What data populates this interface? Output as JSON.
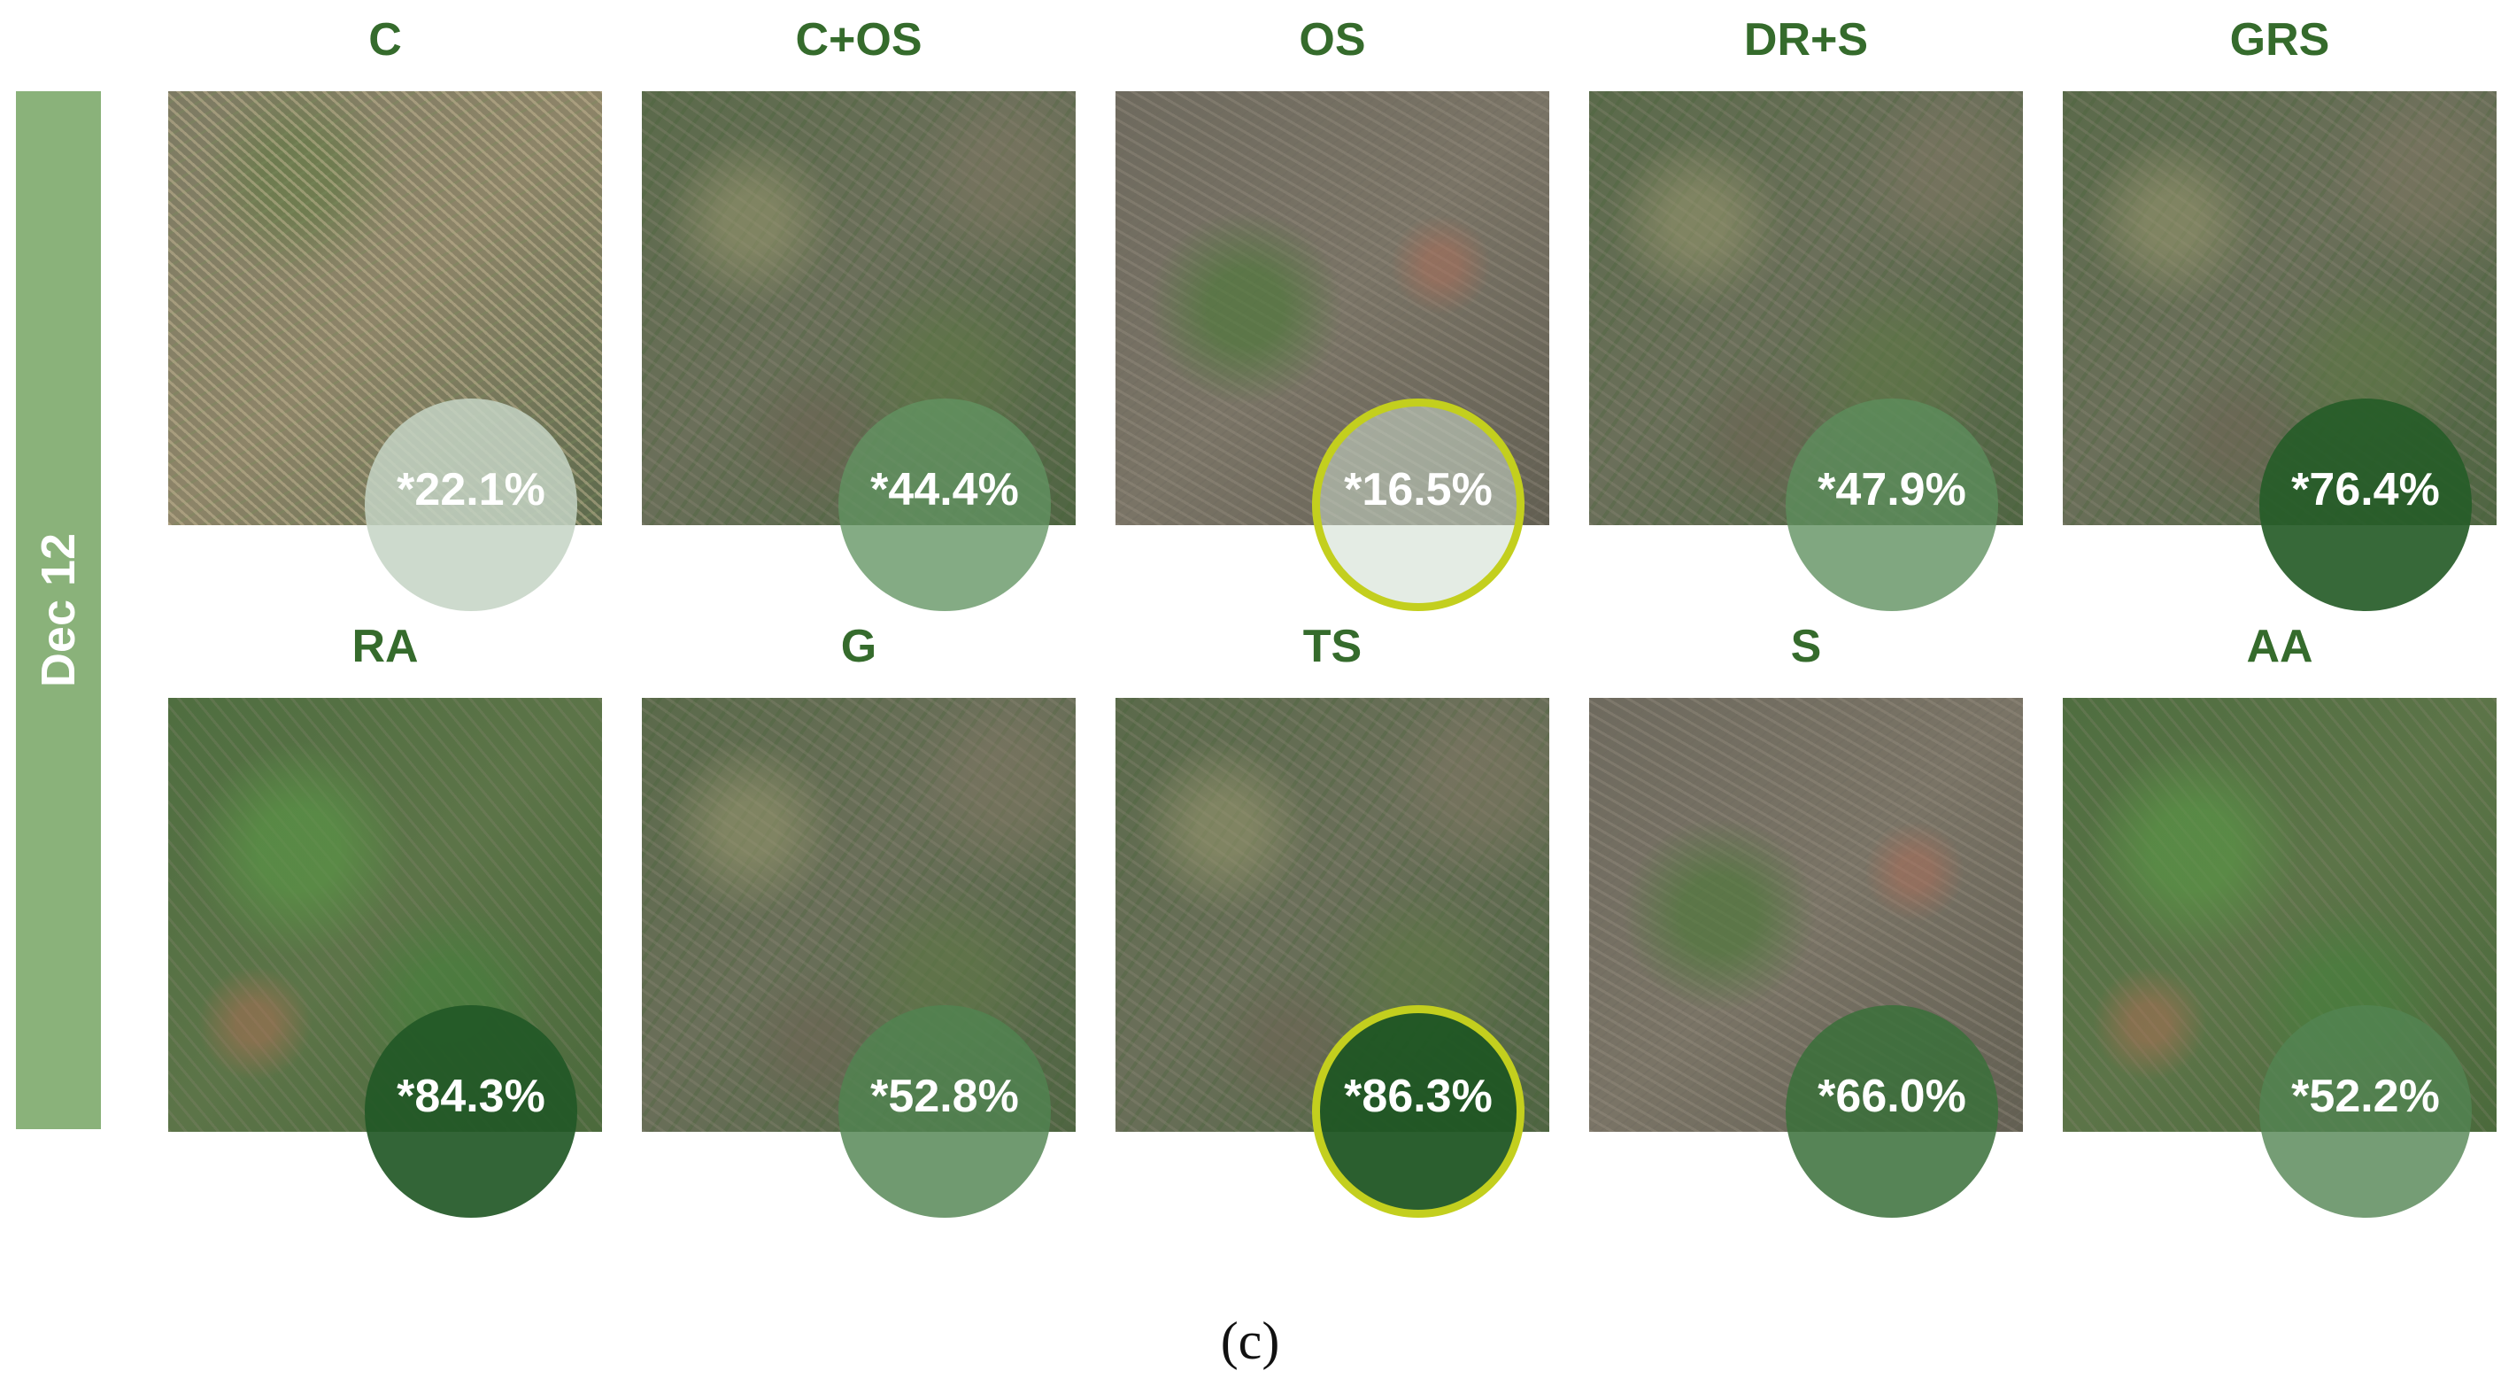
{
  "date_label": "Dec 12",
  "caption": "(c)",
  "colors": {
    "date_band": "#8ab27a",
    "label_text": "#356b2c",
    "highlight_ring": "#c3cf1e"
  },
  "rows": [
    {
      "plots": [
        {
          "label": "C",
          "value": "*22.1%",
          "circle_color": "rgba(196,212,196,0.85)",
          "highlight": false
        },
        {
          "label": "C+OS",
          "value": "*44.4%",
          "circle_color": "rgba(98,148,98,0.78)",
          "highlight": false
        },
        {
          "label": "OS",
          "value": "*16.5%",
          "circle_color": "rgba(206,220,206,0.55)",
          "highlight": true
        },
        {
          "label": "DR+S",
          "value": "*47.9%",
          "circle_color": "rgba(92,142,92,0.78)",
          "highlight": false
        },
        {
          "label": "GRS",
          "value": "*76.4%",
          "circle_color": "rgba(38,92,40,0.92)",
          "highlight": false
        }
      ]
    },
    {
      "plots": [
        {
          "label": "RA",
          "value": "*84.3%",
          "circle_color": "rgba(34,88,38,0.92)",
          "highlight": false
        },
        {
          "label": "G",
          "value": "*52.8%",
          "circle_color": "rgba(80,132,80,0.82)",
          "highlight": false
        },
        {
          "label": "TS",
          "value": "*86.3%",
          "circle_color": "rgba(32,86,36,0.95)",
          "highlight": true
        },
        {
          "label": "S",
          "value": "*66.0%",
          "circle_color": "rgba(58,112,58,0.86)",
          "highlight": false
        },
        {
          "label": "AA",
          "value": "*52.2%",
          "circle_color": "rgba(82,132,82,0.8)",
          "highlight": false
        }
      ]
    }
  ]
}
